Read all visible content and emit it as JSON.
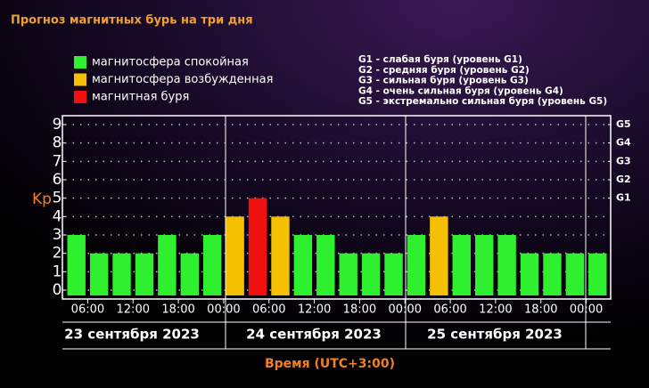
{
  "chart_data": {
    "type": "bar",
    "title": "Прогноз магнитных бурь на три дня",
    "ylabel": "Kp",
    "xlabel": "Время (UTC+3:00)",
    "legend": [
      {
        "name": "магнитосфера спокойная",
        "color": "#2ef02e"
      },
      {
        "name": "магнитосфера возбужденная",
        "color": "#f5c000"
      },
      {
        "name": "магнитная буря",
        "color": "#f01010"
      }
    ],
    "storm_legend": [
      "G1 - слабая буря (уровень G1)",
      "G2 - средняя буря (уровень G2)",
      "G3 - сильная буря (уровень G3)",
      "G4 - очень сильная буря (уровень G4)",
      "G5 - экстремально сильная буря (уровень G5)"
    ],
    "day_labels": [
      "23 сентября 2023",
      "24 сентября 2023",
      "25 сентября 2023"
    ],
    "x": [
      0,
      3,
      6,
      9,
      12,
      15,
      18,
      21,
      24,
      27,
      30,
      33,
      36,
      39,
      42,
      45,
      48,
      51,
      54,
      57,
      60,
      63,
      66,
      69
    ],
    "values": [
      3,
      2,
      2,
      2,
      3,
      2,
      3,
      4,
      5,
      4,
      3,
      3,
      2,
      2,
      2,
      3,
      4,
      3,
      3,
      3,
      2,
      2,
      2,
      2
    ],
    "bar_colors": [
      "#2ef02e",
      "#2ef02e",
      "#2ef02e",
      "#2ef02e",
      "#2ef02e",
      "#2ef02e",
      "#2ef02e",
      "#f5c000",
      "#f01010",
      "#f5c000",
      "#2ef02e",
      "#2ef02e",
      "#2ef02e",
      "#2ef02e",
      "#2ef02e",
      "#2ef02e",
      "#f5c000",
      "#2ef02e",
      "#2ef02e",
      "#2ef02e",
      "#2ef02e",
      "#2ef02e",
      "#2ef02e",
      "#2ef02e"
    ],
    "xlim": [
      0,
      72
    ],
    "xticks": [
      {
        "value": 3,
        "label": "06:00"
      },
      {
        "value": 9,
        "label": "12:00"
      },
      {
        "value": 15,
        "label": "18:00"
      },
      {
        "value": 21,
        "label": "00:00"
      },
      {
        "value": 27,
        "label": "06:00"
      },
      {
        "value": 33,
        "label": "12:00"
      },
      {
        "value": 39,
        "label": "18:00"
      },
      {
        "value": 45,
        "label": "00:00"
      },
      {
        "value": 51,
        "label": "06:00"
      },
      {
        "value": 57,
        "label": "12:00"
      },
      {
        "value": 63,
        "label": "18:00"
      },
      {
        "value": 69,
        "label": "00:00"
      }
    ],
    "ylim": [
      0,
      9
    ],
    "yticks": [
      0,
      1,
      2,
      3,
      4,
      5,
      6,
      7,
      8,
      9
    ],
    "y2lim": [
      0,
      9
    ],
    "y2ticks": [
      {
        "value": 5,
        "label": "G1"
      },
      {
        "value": 6,
        "label": "G2"
      },
      {
        "value": 7,
        "label": "G3"
      },
      {
        "value": 8,
        "label": "G4"
      },
      {
        "value": 9,
        "label": "G5"
      }
    ],
    "grid": true
  }
}
